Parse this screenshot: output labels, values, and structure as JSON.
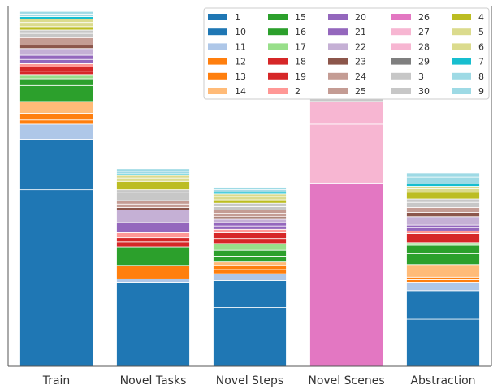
{
  "chart_data": {
    "type": "bar",
    "stacked": true,
    "categories": [
      "Train",
      "Novel Tasks",
      "Novel Steps",
      "Novel Scenes",
      "Abstraction"
    ],
    "ylim": [
      0,
      428
    ],
    "grid": false,
    "legend": {
      "placement": "top-right",
      "columns": 5
    },
    "series": [
      {
        "name": "1",
        "color": "#1f77b4",
        "values": [
          210,
          100,
          70,
          0,
          56
        ]
      },
      {
        "name": "10",
        "color": "#1f77b4",
        "values": [
          60,
          0,
          32,
          0,
          34
        ]
      },
      {
        "name": "11",
        "color": "#aec7e8",
        "values": [
          18,
          4,
          8,
          0,
          10
        ]
      },
      {
        "name": "12",
        "color": "#ff7f0e",
        "values": [
          5,
          16,
          5,
          0,
          3
        ]
      },
      {
        "name": "13",
        "color": "#ff7f0e",
        "values": [
          8,
          0,
          5,
          0,
          3
        ]
      },
      {
        "name": "14",
        "color": "#ffbb78",
        "values": [
          14,
          0,
          4,
          0,
          15
        ]
      },
      {
        "name": "15",
        "color": "#2ca02c",
        "values": [
          19,
          10,
          7,
          0,
          13
        ]
      },
      {
        "name": "16",
        "color": "#2ca02c",
        "values": [
          8,
          12,
          7,
          0,
          10
        ]
      },
      {
        "name": "17",
        "color": "#98df8a",
        "values": [
          5,
          0,
          8,
          0,
          3
        ]
      },
      {
        "name": "18",
        "color": "#d62728",
        "values": [
          4,
          6,
          6,
          0,
          8
        ]
      },
      {
        "name": "19",
        "color": "#d62728",
        "values": [
          5,
          5,
          7,
          0,
          3
        ]
      },
      {
        "name": "2",
        "color": "#ff9896",
        "values": [
          4,
          6,
          4,
          0,
          3
        ]
      },
      {
        "name": "20",
        "color": "#9467bd",
        "values": [
          5,
          12,
          4,
          0,
          4
        ]
      },
      {
        "name": "21",
        "color": "#9467bd",
        "values": [
          5,
          0,
          4,
          0,
          3
        ]
      },
      {
        "name": "22",
        "color": "#c5b0d5",
        "values": [
          8,
          15,
          4,
          0,
          10
        ]
      },
      {
        "name": "23",
        "color": "#8c564b",
        "values": [
          4,
          3,
          3,
          0,
          5
        ]
      },
      {
        "name": "24",
        "color": "#c49c94",
        "values": [
          5,
          4,
          4,
          0,
          3
        ]
      },
      {
        "name": "25",
        "color": "#c49c94",
        "values": [
          4,
          4,
          4,
          0,
          3
        ]
      },
      {
        "name": "26",
        "color": "#e377c2",
        "values": [
          0,
          0,
          0,
          218,
          0
        ]
      },
      {
        "name": "27",
        "color": "#f7b6d2",
        "values": [
          0,
          0,
          0,
          70,
          0
        ]
      },
      {
        "name": "28",
        "color": "#f7b6d2",
        "values": [
          0,
          0,
          0,
          27,
          0
        ]
      },
      {
        "name": "29",
        "color": "#7f7f7f",
        "values": [
          0,
          0,
          0,
          0,
          0
        ]
      },
      {
        "name": "3",
        "color": "#c7c7c7",
        "values": [
          5,
          10,
          4,
          6,
          6
        ]
      },
      {
        "name": "30",
        "color": "#c7c7c7",
        "values": [
          4,
          3,
          4,
          0,
          4
        ]
      },
      {
        "name": "4",
        "color": "#bcbd22",
        "values": [
          4,
          10,
          4,
          0,
          8
        ]
      },
      {
        "name": "5",
        "color": "#dbdb8d",
        "values": [
          5,
          4,
          4,
          0,
          4
        ]
      },
      {
        "name": "6",
        "color": "#dbdb8d",
        "values": [
          4,
          3,
          3,
          0,
          3
        ]
      },
      {
        "name": "7",
        "color": "#17becf",
        "values": [
          3,
          2,
          2,
          0,
          3
        ]
      },
      {
        "name": "8",
        "color": "#9edae5",
        "values": [
          3,
          3,
          3,
          0,
          8
        ]
      },
      {
        "name": "9",
        "color": "#9edae5",
        "values": [
          3,
          3,
          3,
          0,
          5
        ]
      }
    ]
  }
}
